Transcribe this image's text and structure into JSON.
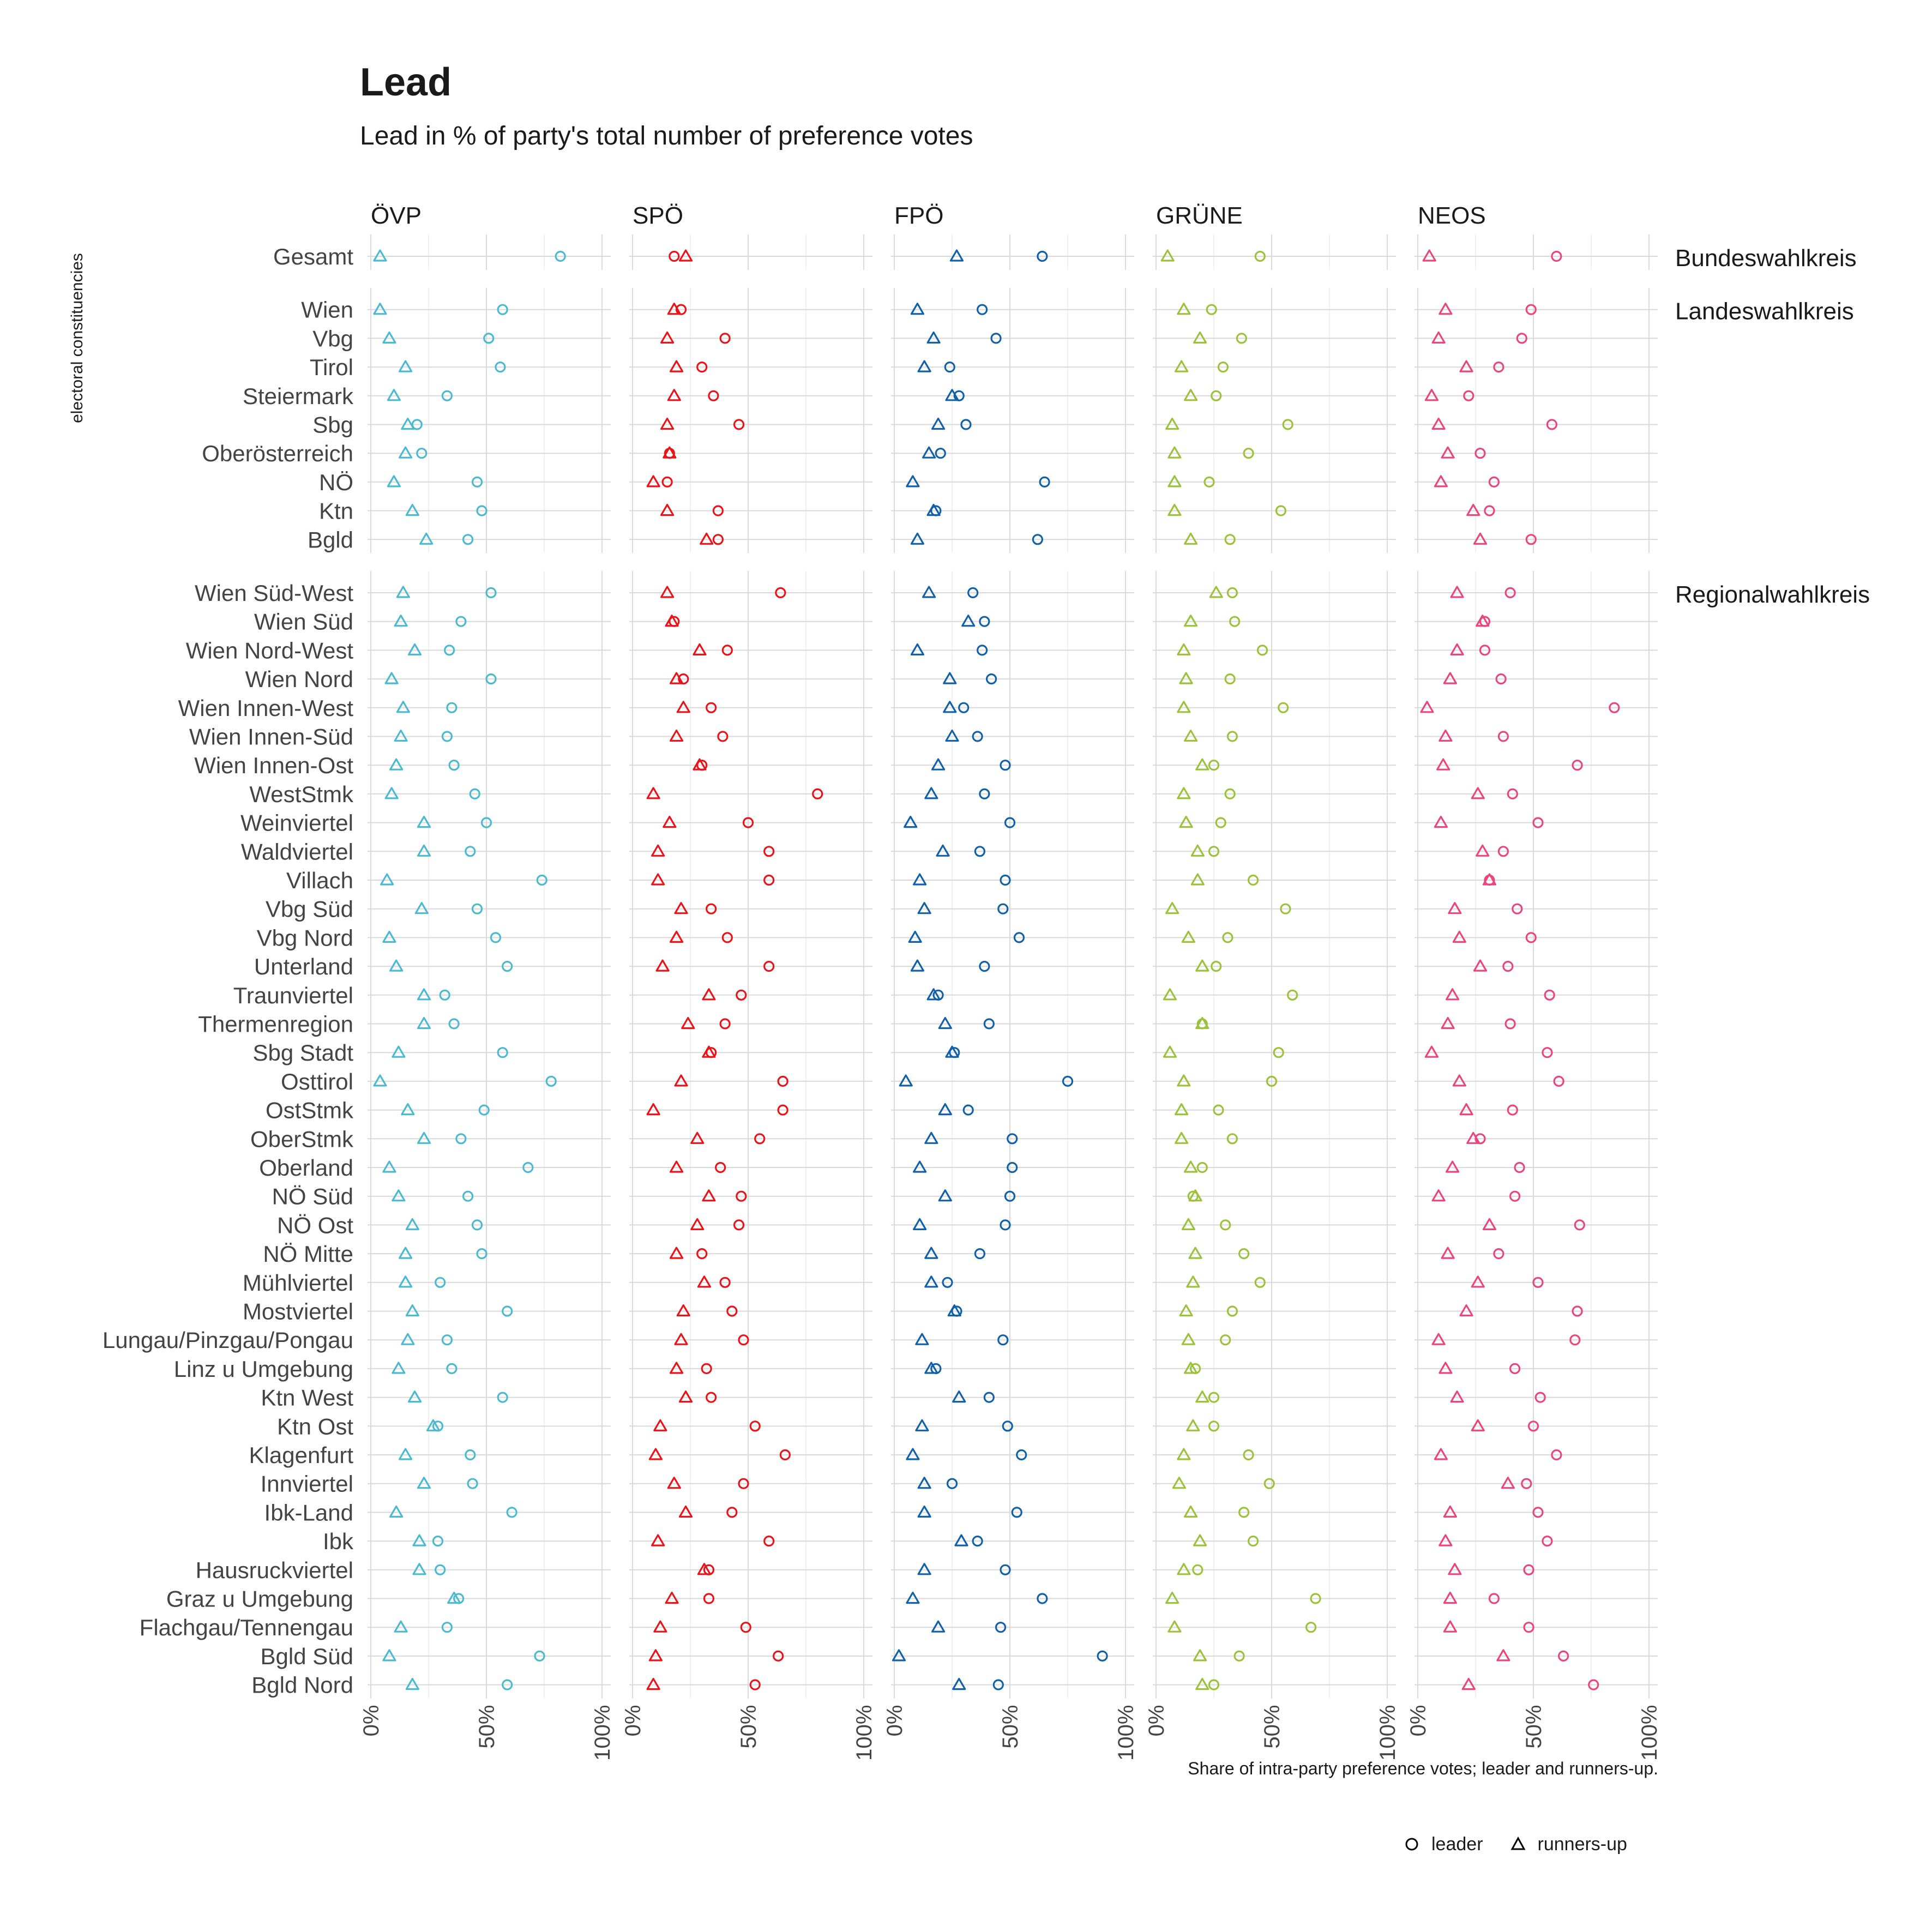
{
  "chart_data": {
    "type": "scatter",
    "title": "Lead",
    "subtitle": "Lead in % of party's total number of preference votes",
    "ylabel": "electoral constituencies",
    "caption": "Share of intra-party preference votes; leader and runners-up.",
    "xlim": [
      0,
      100
    ],
    "x_ticks": [
      "0%",
      "50%",
      "100%"
    ],
    "grid": true,
    "legend": {
      "placement": "bottom-right",
      "entries": [
        {
          "name": "leader",
          "shape": "circle"
        },
        {
          "name": "runners-up",
          "shape": "triangle"
        }
      ]
    },
    "parties": [
      {
        "name": "ÖVP",
        "color": "#4BBAD0"
      },
      {
        "name": "SPÖ",
        "color": "#E8141A"
      },
      {
        "name": "FPÖ",
        "color": "#1161A8"
      },
      {
        "name": "GRÜNE",
        "color": "#9CC23C"
      },
      {
        "name": "NEOS",
        "color": "#E8467C"
      }
    ],
    "groups": [
      {
        "name": "Bundeswahlkreis",
        "rows": [
          {
            "label": "Gesamt",
            "leader": [
              82,
              18,
              64,
              45,
              60
            ],
            "runner": [
              4,
              23,
              27,
              5,
              5
            ]
          }
        ]
      },
      {
        "name": "Landeswahlkreis",
        "rows": [
          {
            "label": "Wien",
            "leader": [
              57,
              21,
              38,
              24,
              49
            ],
            "runner": [
              4,
              18,
              10,
              12,
              12
            ]
          },
          {
            "label": "Vbg",
            "leader": [
              51,
              40,
              44,
              37,
              45
            ],
            "runner": [
              8,
              15,
              17,
              19,
              9
            ]
          },
          {
            "label": "Tirol",
            "leader": [
              56,
              30,
              24,
              29,
              35
            ],
            "runner": [
              15,
              19,
              13,
              11,
              21
            ]
          },
          {
            "label": "Steiermark",
            "leader": [
              33,
              35,
              28,
              26,
              22
            ],
            "runner": [
              10,
              18,
              25,
              15,
              6
            ]
          },
          {
            "label": "Sbg",
            "leader": [
              20,
              46,
              31,
              57,
              58
            ],
            "runner": [
              16,
              15,
              19,
              7,
              9
            ]
          },
          {
            "label": "Oberösterreich",
            "leader": [
              22,
              16,
              20,
              40,
              27
            ],
            "runner": [
              15,
              16,
              15,
              8,
              13
            ]
          },
          {
            "label": "NÖ",
            "leader": [
              46,
              15,
              65,
              23,
              33
            ],
            "runner": [
              10,
              9,
              8,
              8,
              10
            ]
          },
          {
            "label": "Ktn",
            "leader": [
              48,
              37,
              18,
              54,
              31
            ],
            "runner": [
              18,
              15,
              17,
              8,
              24
            ]
          },
          {
            "label": "Bgld",
            "leader": [
              42,
              37,
              62,
              32,
              49
            ],
            "runner": [
              24,
              32,
              10,
              15,
              27
            ]
          }
        ]
      },
      {
        "name": "Regionalwahlkreis",
        "rows": [
          {
            "label": "Wien Süd-West",
            "leader": [
              52,
              64,
              34,
              33,
              40
            ],
            "runner": [
              14,
              15,
              15,
              26,
              17
            ]
          },
          {
            "label": "Wien Süd",
            "leader": [
              39,
              18,
              39,
              34,
              29
            ],
            "runner": [
              13,
              17,
              32,
              15,
              28
            ]
          },
          {
            "label": "Wien Nord-West",
            "leader": [
              34,
              41,
              38,
              46,
              29
            ],
            "runner": [
              19,
              29,
              10,
              12,
              17
            ]
          },
          {
            "label": "Wien Nord",
            "leader": [
              52,
              22,
              42,
              32,
              36
            ],
            "runner": [
              9,
              19,
              24,
              13,
              14
            ]
          },
          {
            "label": "Wien Innen-West",
            "leader": [
              35,
              34,
              30,
              55,
              85
            ],
            "runner": [
              14,
              22,
              24,
              12,
              4
            ]
          },
          {
            "label": "Wien Innen-Süd",
            "leader": [
              33,
              39,
              36,
              33,
              37
            ],
            "runner": [
              13,
              19,
              25,
              15,
              12
            ]
          },
          {
            "label": "Wien Innen-Ost",
            "leader": [
              36,
              30,
              48,
              25,
              69
            ],
            "runner": [
              11,
              29,
              19,
              20,
              11
            ]
          },
          {
            "label": "WestStmk",
            "leader": [
              45,
              80,
              39,
              32,
              41
            ],
            "runner": [
              9,
              9,
              16,
              12,
              26
            ]
          },
          {
            "label": "Weinviertel",
            "leader": [
              50,
              50,
              50,
              28,
              52
            ],
            "runner": [
              23,
              16,
              7,
              13,
              10
            ]
          },
          {
            "label": "Waldviertel",
            "leader": [
              43,
              59,
              37,
              25,
              37
            ],
            "runner": [
              23,
              11,
              21,
              18,
              28
            ]
          },
          {
            "label": "Villach",
            "leader": [
              74,
              59,
              48,
              42,
              31
            ],
            "runner": [
              7,
              11,
              11,
              18,
              31
            ]
          },
          {
            "label": "Vbg Süd",
            "leader": [
              46,
              34,
              47,
              56,
              43
            ],
            "runner": [
              22,
              21,
              13,
              7,
              16
            ]
          },
          {
            "label": "Vbg Nord",
            "leader": [
              54,
              41,
              54,
              31,
              49
            ],
            "runner": [
              8,
              19,
              9,
              14,
              18
            ]
          },
          {
            "label": "Unterland",
            "leader": [
              59,
              59,
              39,
              26,
              39
            ],
            "runner": [
              11,
              13,
              10,
              20,
              27
            ]
          },
          {
            "label": "Traunviertel",
            "leader": [
              32,
              47,
              19,
              59,
              57
            ],
            "runner": [
              23,
              33,
              17,
              6,
              15
            ]
          },
          {
            "label": "Thermenregion",
            "leader": [
              36,
              40,
              41,
              20,
              40
            ],
            "runner": [
              23,
              24,
              22,
              20,
              13
            ]
          },
          {
            "label": "Sbg Stadt",
            "leader": [
              57,
              34,
              26,
              53,
              56
            ],
            "runner": [
              12,
              33,
              25,
              6,
              6
            ]
          },
          {
            "label": "Osttirol",
            "leader": [
              78,
              65,
              75,
              50,
              61
            ],
            "runner": [
              4,
              21,
              5,
              12,
              18
            ]
          },
          {
            "label": "OstStmk",
            "leader": [
              49,
              65,
              32,
              27,
              41
            ],
            "runner": [
              16,
              9,
              22,
              11,
              21
            ]
          },
          {
            "label": "OberStmk",
            "leader": [
              39,
              55,
              51,
              33,
              27
            ],
            "runner": [
              23,
              28,
              16,
              11,
              24
            ]
          },
          {
            "label": "Oberland",
            "leader": [
              68,
              38,
              51,
              20,
              44
            ],
            "runner": [
              8,
              19,
              11,
              15,
              15
            ]
          },
          {
            "label": "NÖ Süd",
            "leader": [
              42,
              47,
              50,
              16,
              42
            ],
            "runner": [
              12,
              33,
              22,
              17,
              9
            ]
          },
          {
            "label": "NÖ Ost",
            "leader": [
              46,
              46,
              48,
              30,
              70
            ],
            "runner": [
              18,
              28,
              11,
              14,
              31
            ]
          },
          {
            "label": "NÖ Mitte",
            "leader": [
              48,
              30,
              37,
              38,
              35
            ],
            "runner": [
              15,
              19,
              16,
              17,
              13
            ]
          },
          {
            "label": "Mühlviertel",
            "leader": [
              30,
              40,
              23,
              45,
              52
            ],
            "runner": [
              15,
              31,
              16,
              16,
              26
            ]
          },
          {
            "label": "Mostviertel",
            "leader": [
              59,
              43,
              27,
              33,
              69
            ],
            "runner": [
              18,
              22,
              26,
              13,
              21
            ]
          },
          {
            "label": "Lungau/Pinzgau/Pongau",
            "leader": [
              33,
              48,
              47,
              30,
              68
            ],
            "runner": [
              16,
              21,
              12,
              14,
              9
            ]
          },
          {
            "label": "Linz u Umgebung",
            "leader": [
              35,
              32,
              18,
              17,
              42
            ],
            "runner": [
              12,
              19,
              16,
              15,
              12
            ]
          },
          {
            "label": "Ktn West",
            "leader": [
              57,
              34,
              41,
              25,
              53
            ],
            "runner": [
              19,
              23,
              28,
              20,
              17
            ]
          },
          {
            "label": "Ktn Ost",
            "leader": [
              29,
              53,
              49,
              25,
              50
            ],
            "runner": [
              27,
              12,
              12,
              16,
              26
            ]
          },
          {
            "label": "Klagenfurt",
            "leader": [
              43,
              66,
              55,
              40,
              60
            ],
            "runner": [
              15,
              10,
              8,
              12,
              10
            ]
          },
          {
            "label": "Innviertel",
            "leader": [
              44,
              48,
              25,
              49,
              47
            ],
            "runner": [
              23,
              18,
              13,
              10,
              39
            ]
          },
          {
            "label": "Ibk-Land",
            "leader": [
              61,
              43,
              53,
              38,
              52
            ],
            "runner": [
              11,
              23,
              13,
              15,
              14
            ]
          },
          {
            "label": "Ibk",
            "leader": [
              29,
              59,
              36,
              42,
              56
            ],
            "runner": [
              21,
              11,
              29,
              19,
              12
            ]
          },
          {
            "label": "Hausruckviertel",
            "leader": [
              30,
              33,
              48,
              18,
              48
            ],
            "runner": [
              21,
              31,
              13,
              12,
              16
            ]
          },
          {
            "label": "Graz u Umgebung",
            "leader": [
              38,
              33,
              64,
              69,
              33
            ],
            "runner": [
              36,
              17,
              8,
              7,
              14
            ]
          },
          {
            "label": "Flachgau/Tennengau",
            "leader": [
              33,
              49,
              46,
              67,
              48
            ],
            "runner": [
              13,
              12,
              19,
              8,
              14
            ]
          },
          {
            "label": "Bgld Süd",
            "leader": [
              73,
              63,
              90,
              36,
              63
            ],
            "runner": [
              8,
              10,
              2,
              19,
              37
            ]
          },
          {
            "label": "Bgld Nord",
            "leader": [
              59,
              53,
              45,
              25,
              76
            ],
            "runner": [
              18,
              9,
              28,
              20,
              22
            ]
          }
        ]
      }
    ]
  }
}
